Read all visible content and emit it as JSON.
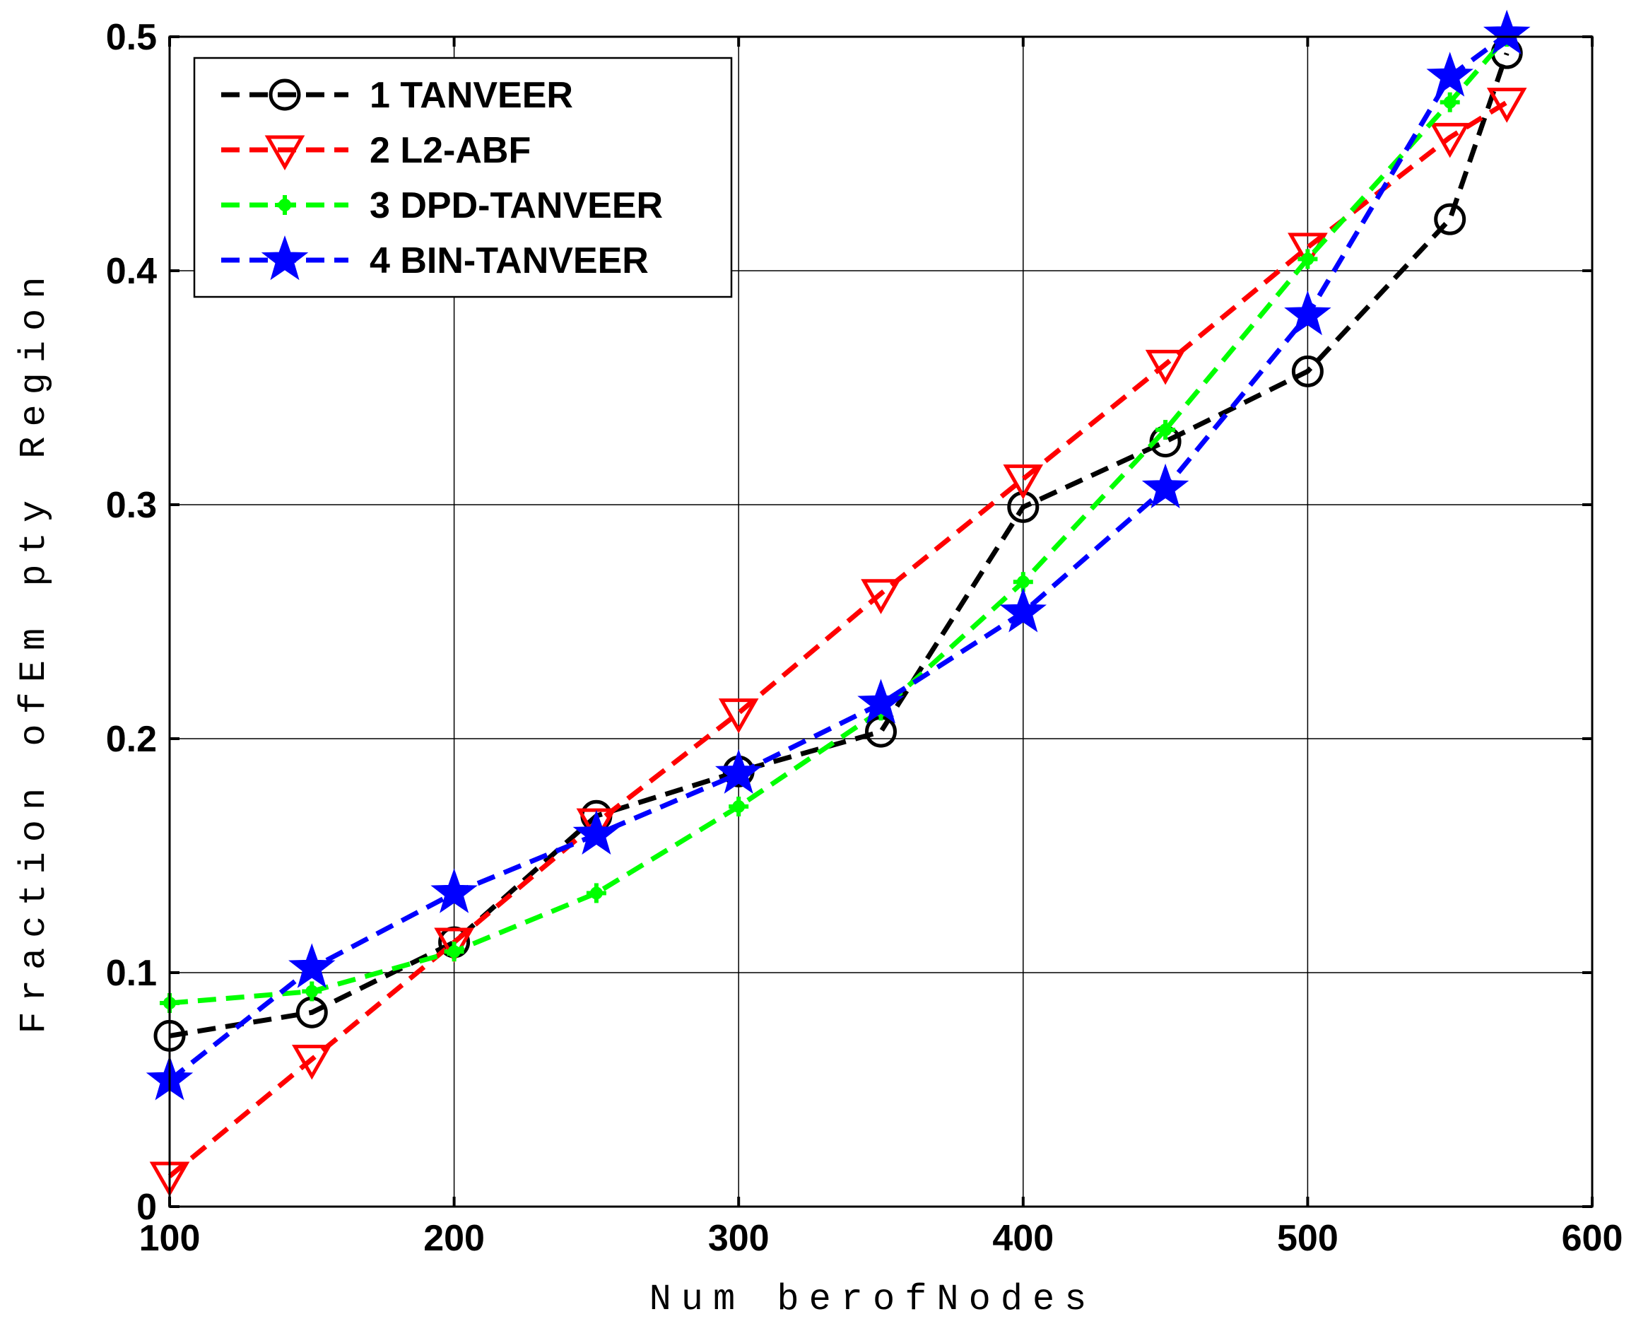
{
  "chart_data": {
    "type": "line",
    "xlabel": "Num berofNodes",
    "ylabel": "Fraction ofEm pty Region",
    "xlim": [
      100,
      600
    ],
    "ylim": [
      0,
      0.5
    ],
    "xticks": [
      "100",
      "200",
      "300",
      "400",
      "500",
      "600"
    ],
    "yticks": [
      "0",
      "0.1",
      "0.2",
      "0.3",
      "0.4",
      "0.5"
    ],
    "grid": true,
    "legend_position": "top-left",
    "x": [
      100,
      150,
      200,
      250,
      300,
      350,
      400,
      450,
      500,
      550,
      570
    ],
    "series": [
      {
        "name": "1 TANVEER",
        "color": "#000000",
        "marker": "circle",
        "values": [
          0.073,
          0.083,
          0.113,
          0.167,
          0.186,
          0.203,
          0.299,
          0.327,
          0.357,
          0.422,
          0.493
        ]
      },
      {
        "name": "2 L2-ABF",
        "color": "#ff0000",
        "marker": "triangle-down",
        "values": [
          0.013,
          0.063,
          0.113,
          0.164,
          0.211,
          0.262,
          0.311,
          0.36,
          0.41,
          0.457,
          0.472
        ]
      },
      {
        "name": "3 DPD-TANVEER",
        "color": "#00ff00",
        "marker": "plus-dot",
        "values": [
          0.087,
          0.092,
          0.109,
          0.134,
          0.171,
          0.212,
          0.267,
          0.332,
          0.405,
          0.472,
          0.5
        ]
      },
      {
        "name": "4 BIN-TANVEER",
        "color": "#0000ff",
        "marker": "star",
        "values": [
          0.054,
          0.102,
          0.134,
          0.159,
          0.185,
          0.215,
          0.254,
          0.307,
          0.381,
          0.483,
          0.501
        ]
      }
    ]
  }
}
